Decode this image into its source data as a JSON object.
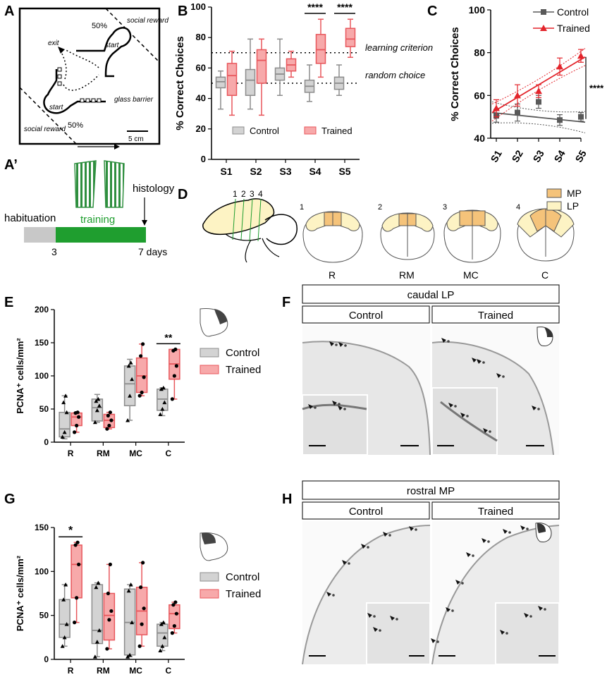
{
  "colors": {
    "control_fill": "#d3d3d3",
    "control_stroke": "#8c8c8c",
    "trained_fill": "#f7a9aa",
    "trained_stroke": "#e8575c",
    "line_control": "#595959",
    "line_trained": "#e3242b",
    "region_mp": "#f5c37a",
    "region_lp": "#fdf3c4",
    "training_bar": "#1f9e2f",
    "habituation_bar": "#c8c8c8",
    "stripes": "#2f8f3f",
    "micro_bg": "#e7e7e7"
  },
  "panels": {
    "A": "A",
    "Aprime": "A’",
    "B": "B",
    "C": "C",
    "D": "D",
    "E": "E",
    "F": "F",
    "G": "G",
    "H": "H"
  },
  "maze": {
    "social_reward_top": "social reward",
    "social_reward_bottom": "social reward",
    "pct_top": "50%",
    "pct_bottom": "50%",
    "start_top": "start",
    "start_bottom": "start",
    "exit": "exit",
    "glass_barrier": "glass barrier",
    "scale": "5 cm"
  },
  "timeline": {
    "habituation": "habituation",
    "training": "training",
    "histology": "histology",
    "day_start": "3",
    "day_end": "7 days"
  },
  "regions": {
    "section_nums": [
      "1",
      "2",
      "3",
      "4"
    ],
    "section_names": [
      "R",
      "RM",
      "MC",
      "C"
    ],
    "legend_mp": "MP",
    "legend_lp": "LP"
  },
  "legend": {
    "control": "Control",
    "trained": "Trained"
  },
  "micro_F": {
    "title": "caudal LP",
    "control": "Control",
    "trained": "Trained"
  },
  "micro_H": {
    "title": "rostral MP",
    "control": "Control",
    "trained": "Trained"
  },
  "chart_data": [
    {
      "id": "B",
      "type": "box",
      "categories": [
        "S1",
        "S2",
        "S3",
        "S4",
        "S5"
      ],
      "ylabel": "% Correct Choices",
      "ylim": [
        0,
        100
      ],
      "yticks": [
        0,
        20,
        40,
        60,
        80,
        100
      ],
      "reference_lines": [
        {
          "y": 70,
          "label": "learning criterion"
        },
        {
          "y": 50,
          "label": "random choice"
        }
      ],
      "series": [
        {
          "name": "Control",
          "boxes": [
            {
              "min": 33,
              "q1": 47,
              "median": 51,
              "q3": 54,
              "max": 58
            },
            {
              "min": 33,
              "q1": 42,
              "median": 52,
              "q3": 59,
              "max": 79
            },
            {
              "min": 42,
              "q1": 52,
              "median": 56,
              "q3": 60,
              "max": 79
            },
            {
              "min": 38,
              "q1": 44,
              "median": 48,
              "q3": 52,
              "max": 62
            },
            {
              "min": 42,
              "q1": 46,
              "median": 50,
              "q3": 54,
              "max": 62
            }
          ]
        },
        {
          "name": "Trained",
          "boxes": [
            {
              "min": 29,
              "q1": 42,
              "median": 55,
              "q3": 63,
              "max": 71
            },
            {
              "min": 29,
              "q1": 50,
              "median": 65,
              "q3": 72,
              "max": 79
            },
            {
              "min": 54,
              "q1": 58,
              "median": 62,
              "q3": 66,
              "max": 71
            },
            {
              "min": 54,
              "q1": 63,
              "median": 72,
              "q3": 82,
              "max": 92
            },
            {
              "min": 67,
              "q1": 74,
              "median": 79,
              "q3": 86,
              "max": 92
            }
          ]
        }
      ],
      "significance": [
        {
          "category": "S4",
          "label": "****"
        },
        {
          "category": "S5",
          "label": "****"
        }
      ]
    },
    {
      "id": "C",
      "type": "line",
      "categories": [
        "S1",
        "S2",
        "S3",
        "S4",
        "S5"
      ],
      "ylabel": "% Correct Choices",
      "ylim": [
        40,
        100
      ],
      "yticks": [
        40,
        60,
        80,
        100
      ],
      "series": [
        {
          "name": "Control",
          "values": [
            50.5,
            52,
            57,
            48.5,
            50
          ],
          "errors": [
            3,
            4,
            3,
            2.5,
            2
          ],
          "fit": [
            52,
            47.5
          ]
        },
        {
          "name": "Trained",
          "values": [
            54,
            60,
            62,
            73.5,
            78.5
          ],
          "errors": [
            4,
            5,
            3,
            4,
            3
          ],
          "fit": [
            52,
            78
          ]
        }
      ],
      "significance": [
        {
          "label": "****"
        }
      ]
    },
    {
      "id": "E",
      "type": "box",
      "categories": [
        "R",
        "RM",
        "MC",
        "C"
      ],
      "ylabel": "PCNA⁺ cells/mm²",
      "ylim": [
        0,
        200
      ],
      "yticks": [
        0,
        50,
        100,
        150,
        200
      ],
      "series": [
        {
          "name": "Control",
          "boxes": [
            {
              "min": 5,
              "q1": 8,
              "median": 20,
              "q3": 45,
              "max": 70
            },
            {
              "min": 30,
              "q1": 32,
              "median": 52,
              "q3": 65,
              "max": 72
            },
            {
              "min": 33,
              "q1": 55,
              "median": 88,
              "q3": 115,
              "max": 125
            },
            {
              "min": 40,
              "q1": 48,
              "median": 65,
              "q3": 80,
              "max": 82
            }
          ],
          "points": [
            [
              8,
              15,
              45,
              60,
              70
            ],
            [
              30,
              48,
              55,
              62,
              65
            ],
            [
              33,
              70,
              95,
              115,
              120
            ],
            [
              42,
              50,
              60,
              80,
              82
            ]
          ]
        },
        {
          "name": "Trained",
          "boxes": [
            {
              "min": 15,
              "q1": 25,
              "median": 38,
              "q3": 44,
              "max": 45
            },
            {
              "min": 20,
              "q1": 22,
              "median": 33,
              "q3": 42,
              "max": 45
            },
            {
              "min": 70,
              "q1": 75,
              "median": 100,
              "q3": 127,
              "max": 148
            },
            {
              "min": 65,
              "q1": 95,
              "median": 118,
              "q3": 140,
              "max": 140
            }
          ],
          "points": [
            [
              15,
              25,
              38,
              44,
              45
            ],
            [
              20,
              25,
              33,
              40,
              45
            ],
            [
              70,
              75,
              98,
              130,
              148
            ],
            [
              65,
              100,
              115,
              138,
              140
            ]
          ]
        }
      ],
      "significance": [
        {
          "category": "C",
          "label": "**"
        }
      ]
    },
    {
      "id": "G",
      "type": "box",
      "categories": [
        "R",
        "RM",
        "MC",
        "C"
      ],
      "ylabel": "PCNA⁺ cells/mm²",
      "ylim": [
        0,
        150
      ],
      "yticks": [
        0,
        50,
        100,
        150
      ],
      "series": [
        {
          "name": "Control",
          "boxes": [
            {
              "min": 15,
              "q1": 25,
              "median": 40,
              "q3": 68,
              "max": 85
            },
            {
              "min": 3,
              "q1": 18,
              "median": 33,
              "q3": 85,
              "max": 87
            },
            {
              "min": 3,
              "q1": 5,
              "median": 42,
              "q3": 80,
              "max": 85
            },
            {
              "min": 10,
              "q1": 15,
              "median": 30,
              "q3": 40,
              "max": 42
            }
          ],
          "points": [
            [
              15,
              25,
              40,
              68,
              85
            ],
            [
              3,
              20,
              33,
              82,
              87
            ],
            [
              3,
              5,
              42,
              78,
              85
            ],
            [
              10,
              15,
              25,
              40,
              42
            ]
          ]
        },
        {
          "name": "Trained",
          "boxes": [
            {
              "min": 42,
              "q1": 70,
              "median": 108,
              "q3": 130,
              "max": 133
            },
            {
              "min": 12,
              "q1": 22,
              "median": 50,
              "q3": 75,
              "max": 108
            },
            {
              "min": 15,
              "q1": 28,
              "median": 55,
              "q3": 82,
              "max": 110
            },
            {
              "min": 30,
              "q1": 35,
              "median": 52,
              "q3": 62,
              "max": 65
            }
          ],
          "points": [
            [
              42,
              70,
              108,
              130,
              133
            ],
            [
              12,
              45,
              55,
              75,
              108
            ],
            [
              15,
              40,
              58,
              82,
              110
            ],
            [
              30,
              38,
              52,
              62,
              65
            ]
          ]
        }
      ],
      "significance": [
        {
          "category": "R",
          "label": "*"
        }
      ]
    }
  ]
}
